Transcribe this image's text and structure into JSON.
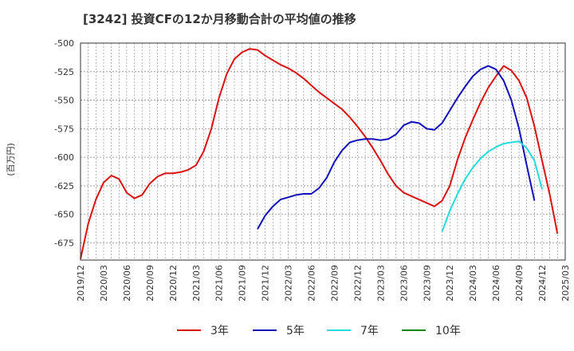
{
  "chart_data": {
    "type": "line",
    "title": "[3242]  投資CFの12か月移動合計の平均値の推移",
    "ylabel": "(百万円)",
    "xlabel": "",
    "ylim": [
      -690,
      -500
    ],
    "yticks": [
      -500,
      -525,
      -550,
      -575,
      -600,
      -625,
      -650,
      -675
    ],
    "ytick_labels": [
      "-500",
      "-525",
      "-550",
      "-575",
      "-600",
      "-625",
      "-650",
      "-675"
    ],
    "xlim": [
      "2019-12",
      "2025-03"
    ],
    "xtick_labels": [
      "2019/12",
      "2020/03",
      "2020/06",
      "2020/09",
      "2020/12",
      "2021/03",
      "2021/06",
      "2021/09",
      "2021/12",
      "2022/03",
      "2022/06",
      "2022/09",
      "2022/12",
      "2023/03",
      "2023/06",
      "2023/09",
      "2023/12",
      "2024/03",
      "2024/06",
      "2024/09",
      "2024/12",
      "2025/03"
    ],
    "grid": true,
    "legend_position": "bottom",
    "series": [
      {
        "name": "3年",
        "color": "#dd1111",
        "start": "2019-12",
        "values": [
          -689,
          -658,
          -637,
          -622,
          -616,
          -619,
          -631,
          -636,
          -633,
          -623,
          -617,
          -614,
          -614,
          -613,
          -611,
          -607,
          -595,
          -575,
          -548,
          -527,
          -514,
          -508,
          -505,
          -506,
          -511,
          -515,
          -519,
          -522,
          -526,
          -531,
          -537,
          -543,
          -548,
          -553,
          -558,
          -565,
          -573,
          -582,
          -592,
          -603,
          -615,
          -625,
          -631,
          -634,
          -637,
          -640,
          -643,
          -638,
          -625,
          -602,
          -583,
          -567,
          -552,
          -539,
          -529,
          -520,
          -524,
          -533,
          -548,
          -573,
          -603,
          -633,
          -667
        ]
      },
      {
        "name": "5年",
        "color": "#1111bb",
        "start": "2021-11",
        "values": [
          -663,
          -651,
          -643,
          -637,
          -635,
          -633,
          -632,
          -632,
          -627,
          -618,
          -604,
          -594,
          -587,
          -585,
          -584,
          -584,
          -585,
          -584,
          -580,
          -572,
          -569,
          -570,
          -575,
          -576,
          -570,
          -559,
          -548,
          -538,
          -529,
          -523,
          -520,
          -523,
          -533,
          -550,
          -575,
          -607,
          -638
        ]
      },
      {
        "name": "7年",
        "color": "#22dddd",
        "start": "2023-11",
        "values": [
          -665,
          -647,
          -632,
          -619,
          -609,
          -601,
          -595,
          -591,
          -588,
          -587,
          -586,
          -592,
          -603,
          -628
        ]
      },
      {
        "name": "10年",
        "color": "#118811",
        "start": "2024-12",
        "values": []
      }
    ]
  }
}
